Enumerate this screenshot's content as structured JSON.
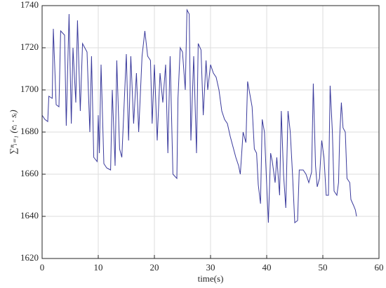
{
  "chart_data": {
    "type": "line",
    "xlabel": "time(s)",
    "ylabel": "∑ⁿᵢ₌₁ (eᵢ · sᵢ)",
    "xlim": [
      0,
      60
    ],
    "xticks": [
      0,
      10,
      20,
      30,
      40,
      50,
      60
    ],
    "ylim": [
      1620,
      1740
    ],
    "yticks": [
      1620,
      1640,
      1660,
      1680,
      1700,
      1720,
      1740
    ],
    "grid": true,
    "series": [
      {
        "color": "#3a3a9c",
        "x": [
          0,
          0.5,
          1,
          1.2,
          1.8,
          2,
          2.5,
          3,
          3.3,
          4,
          4.3,
          4.8,
          5.2,
          5.5,
          6,
          6.3,
          6.8,
          7.2,
          7.6,
          8,
          8.5,
          8.8,
          9.2,
          9.8,
          10,
          10.2,
          10.5,
          11,
          11.5,
          12.2,
          12.5,
          13,
          13.3,
          13.8,
          14.2,
          15,
          15.4,
          15.8,
          16.3,
          16.8,
          17.2,
          17.8,
          18.3,
          18.8,
          19.3,
          19.6,
          20,
          20.5,
          21,
          21.5,
          22,
          22.4,
          22.8,
          23.3,
          24,
          24.2,
          24.6,
          25,
          25.5,
          25.8,
          26.2,
          26.5,
          27,
          27.5,
          27.8,
          28.3,
          28.7,
          29.2,
          29.5,
          30,
          30.5,
          31,
          31.5,
          32,
          32.5,
          33,
          33.5,
          34,
          34.5,
          35,
          35.3,
          35.8,
          36.3,
          36.6,
          37,
          37.4,
          37.8,
          38.2,
          38.5,
          38.9,
          39.2,
          39.6,
          40,
          40.3,
          40.7,
          41,
          41.5,
          41.8,
          42.3,
          42.6,
          43,
          43.4,
          43.8,
          44.2,
          44.6,
          45,
          45.5,
          45.8,
          46.5,
          47,
          47.5,
          48,
          48.3,
          48.7,
          49,
          49.4,
          49.8,
          50.2,
          50.6,
          51,
          51.3,
          51.7,
          52,
          52.5,
          52.8,
          53,
          53.3,
          53.6,
          54,
          54.3,
          54.8,
          55,
          55.5,
          55.8,
          56
        ],
        "values": [
          1688,
          1686,
          1685,
          1697,
          1696,
          1729,
          1693,
          1692,
          1728,
          1726,
          1683,
          1736,
          1684,
          1720,
          1694,
          1733,
          1690,
          1722,
          1720,
          1718,
          1680,
          1716,
          1668,
          1666,
          1688,
          1670,
          1712,
          1665,
          1663,
          1662,
          1700,
          1664,
          1714,
          1672,
          1668,
          1717,
          1676,
          1716,
          1684,
          1708,
          1680,
          1716,
          1728,
          1716,
          1714,
          1684,
          1712,
          1676,
          1708,
          1694,
          1712,
          1670,
          1716,
          1660,
          1658,
          1696,
          1720,
          1718,
          1700,
          1738,
          1736,
          1676,
          1716,
          1670,
          1722,
          1719,
          1688,
          1714,
          1700,
          1712,
          1708,
          1706,
          1700,
          1690,
          1686,
          1684,
          1678,
          1673,
          1668,
          1664,
          1660,
          1680,
          1675,
          1704,
          1698,
          1692,
          1672,
          1670,
          1655,
          1646,
          1686,
          1680,
          1655,
          1637,
          1670,
          1666,
          1656,
          1668,
          1650,
          1690,
          1660,
          1644,
          1690,
          1680,
          1660,
          1637,
          1638,
          1662,
          1662,
          1660,
          1656,
          1661,
          1703,
          1664,
          1654,
          1658,
          1676,
          1668,
          1650,
          1650,
          1702,
          1680,
          1652,
          1650,
          1656,
          1678,
          1694,
          1682,
          1680,
          1658,
          1656,
          1648,
          1645,
          1643,
          1640
        ]
      }
    ]
  }
}
